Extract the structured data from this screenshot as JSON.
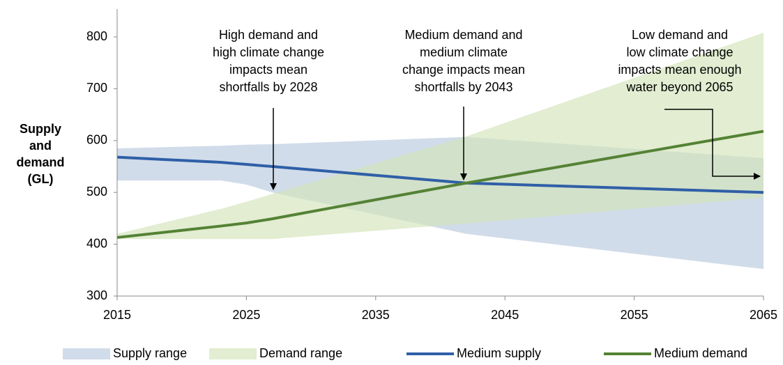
{
  "chart_data": {
    "type": "line",
    "ylabel": [
      "Supply",
      "and",
      "demand",
      "(GL)"
    ],
    "x": [
      2015,
      2023,
      2025,
      2027,
      2042,
      2065
    ],
    "xlim": [
      2015,
      2065
    ],
    "xticks": [
      2015,
      2025,
      2035,
      2045,
      2055,
      2065
    ],
    "ylim": [
      300,
      800
    ],
    "yticks": [
      300,
      400,
      500,
      600,
      700,
      800
    ],
    "series": [
      {
        "name": "Supply range",
        "kind": "range",
        "color": "#b9c9df",
        "upper": [
          585,
          590,
          592,
          593,
          607,
          566
        ],
        "lower": [
          523,
          523,
          515,
          500,
          420,
          352
        ]
      },
      {
        "name": "Demand range",
        "kind": "range",
        "color": "#d2e4b8",
        "upper": [
          420,
          468,
          482,
          497,
          608,
          808
        ],
        "lower": [
          410,
          410,
          410,
          410,
          440,
          490
        ]
      },
      {
        "name": "Medium supply",
        "kind": "line",
        "color": "#2f5fa7",
        "values": [
          568,
          558,
          554,
          550,
          518,
          500
        ]
      },
      {
        "name": "Medium demand",
        "kind": "line",
        "color": "#548235",
        "values": [
          413,
          435,
          441,
          449,
          518,
          618
        ]
      }
    ],
    "annotations": [
      [
        "High demand and",
        "high climate change",
        "impacts mean",
        "shortfalls by 2028"
      ],
      [
        "Medium demand and",
        "medium climate",
        "change impacts mean",
        "shortfalls by 2043"
      ],
      [
        "Low demand and",
        "low climate change",
        "impacts mean enough",
        "water beyond 2065"
      ]
    ]
  }
}
